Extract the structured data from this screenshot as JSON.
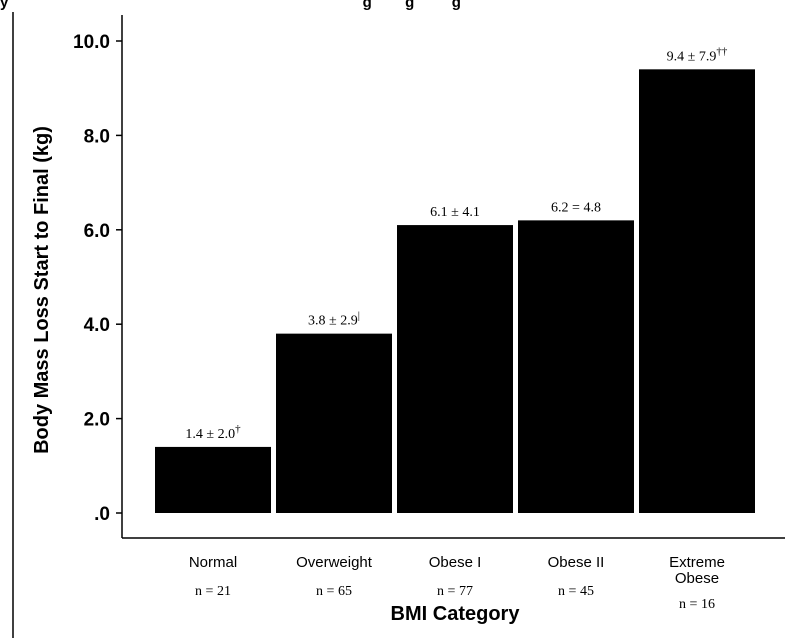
{
  "chart_data": {
    "type": "bar",
    "title": "",
    "cropped_top_text": "y                                                                                     g        g         g",
    "xlabel": "BMI Category",
    "ylabel": "Body Mass Loss Start to Final (kg)",
    "ylim": [
      0,
      10.4
    ],
    "yticks": [
      {
        "value": 0,
        "label": ".0"
      },
      {
        "value": 2,
        "label": "2.0"
      },
      {
        "value": 4,
        "label": "4.0"
      },
      {
        "value": 6,
        "label": "6.0"
      },
      {
        "value": 8,
        "label": "8.0"
      },
      {
        "value": 10,
        "label": "10.0"
      }
    ],
    "bar_color": "#000000",
    "bars": [
      {
        "category": [
          "Normal"
        ],
        "n": "n = 21",
        "value": 1.4,
        "label": "1.4 ± 2.0",
        "mark": "†"
      },
      {
        "category": [
          "Overweight"
        ],
        "n": "n = 65",
        "value": 3.8,
        "label": "3.8 ± 2.9",
        "mark": "|"
      },
      {
        "category": [
          "Obese I"
        ],
        "n": "n = 77",
        "value": 6.1,
        "label": "6.1 ± 4.1",
        "mark": ""
      },
      {
        "category": [
          "Obese II"
        ],
        "n": "n = 45",
        "value": 6.2,
        "label": "6.2 = 4.8",
        "mark": ""
      },
      {
        "category": [
          "Extreme",
          "Obese"
        ],
        "n": "n = 16",
        "value": 9.4,
        "label": "9.4 ± 7.9",
        "mark": "††"
      }
    ]
  }
}
